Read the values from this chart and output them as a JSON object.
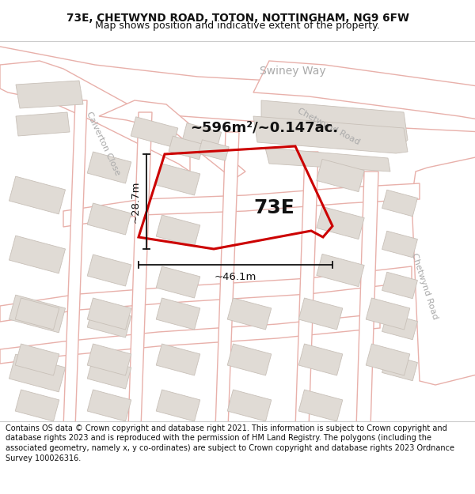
{
  "title_line1": "73E, CHETWYND ROAD, TOTON, NOTTINGHAM, NG9 6FW",
  "title_line2": "Map shows position and indicative extent of the property.",
  "footer_text": "Contains OS data © Crown copyright and database right 2021. This information is subject to Crown copyright and database rights 2023 and is reproduced with the permission of HM Land Registry. The polygons (including the associated geometry, namely x, y co-ordinates) are subject to Crown copyright and database rights 2023 Ordnance Survey 100026316.",
  "area_label": "~596m²/~0.147ac.",
  "width_label": "~46.1m",
  "height_label": "~28.7m",
  "plot_label": "73E",
  "map_bg": "#f7f6f4",
  "road_outline_color": "#e8b0aa",
  "road_fill_color": "#ffffff",
  "building_color": "#e0dbd5",
  "building_stroke": "#c8c0b8",
  "plot_color": "#cc0000",
  "title_bg": "#ffffff",
  "footer_bg": "#ffffff",
  "dim_color": "#111111",
  "road_text_color": "#aaaaaa",
  "border_color": "#cccccc"
}
